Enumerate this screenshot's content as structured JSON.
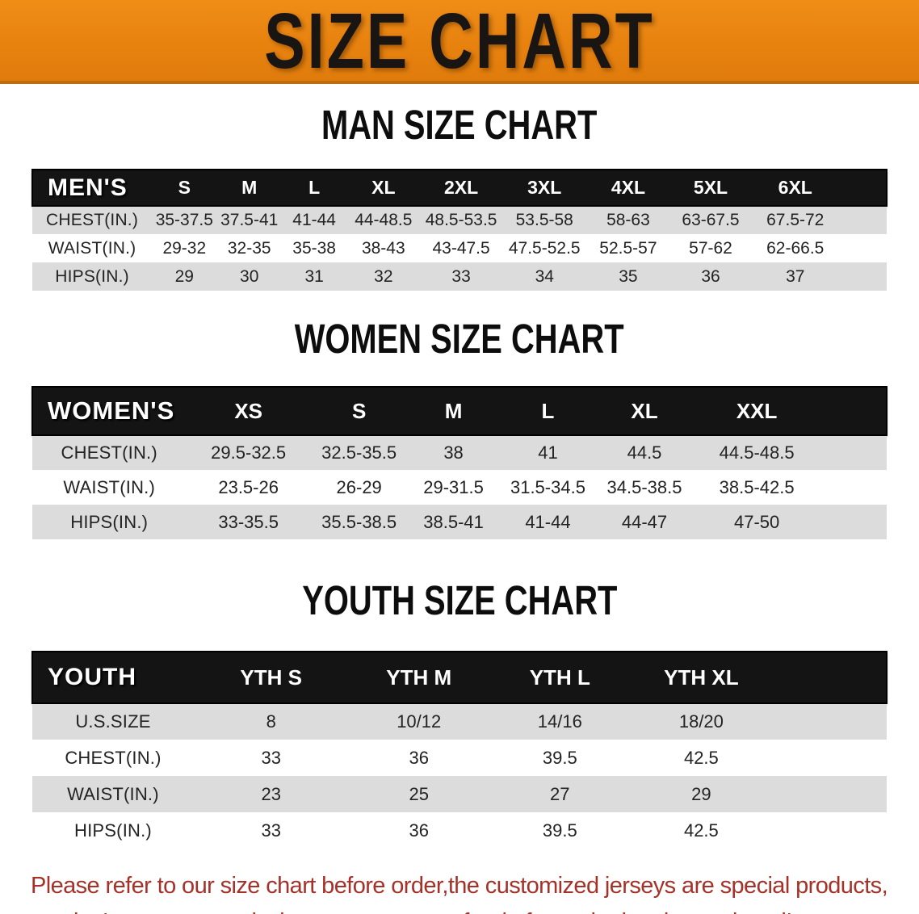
{
  "banner": {
    "title": "SIZE CHART"
  },
  "colors": {
    "banner_orange": "#E8820F",
    "header_black": "#141414",
    "row_gray": "#DCDCDC",
    "row_white": "#FFFFFF",
    "disclaimer_red": "#A63128",
    "heading_text": "#0D0D0D",
    "banner_text": "#181512"
  },
  "sections": {
    "men": {
      "heading": "MAN SIZE CHART",
      "table": {
        "corner_label": "MEN'S",
        "columns": [
          "S",
          "M",
          "L",
          "XL",
          "2XL",
          "3XL",
          "4XL",
          "5XL",
          "6XL"
        ],
        "rows": [
          {
            "label": "CHEST(IN.)",
            "values": [
              "35-37.5",
              "37.5-41",
              "41-44",
              "44-48.5",
              "48.5-53.5",
              "53.5-58",
              "58-63",
              "63-67.5",
              "67.5-72"
            ]
          },
          {
            "label": "WAIST(IN.)",
            "values": [
              "29-32",
              "32-35",
              "35-38",
              "38-43",
              "43-47.5",
              "47.5-52.5",
              "52.5-57",
              "57-62",
              "62-66.5"
            ]
          },
          {
            "label": "HIPS(IN.)",
            "values": [
              "29",
              "30",
              "31",
              "32",
              "33",
              "34",
              "35",
              "36",
              "37"
            ]
          }
        ]
      }
    },
    "women": {
      "heading": "WOMEN SIZE CHART",
      "table": {
        "corner_label": "WOMEN'S",
        "columns": [
          "XS",
          "S",
          "M",
          "L",
          "XL",
          "XXL"
        ],
        "rows": [
          {
            "label": "CHEST(IN.)",
            "values": [
              "29.5-32.5",
              "32.5-35.5",
              "38",
              "41",
              "44.5",
              "44.5-48.5"
            ]
          },
          {
            "label": "WAIST(IN.)",
            "values": [
              "23.5-26",
              "26-29",
              "29-31.5",
              "31.5-34.5",
              "34.5-38.5",
              "38.5-42.5"
            ]
          },
          {
            "label": "HIPS(IN.)",
            "values": [
              "33-35.5",
              "35.5-38.5",
              "38.5-41",
              "41-44",
              "44-47",
              "47-50"
            ]
          }
        ]
      }
    },
    "youth": {
      "heading": "YOUTH SIZE CHART",
      "table": {
        "corner_label": "YOUTH",
        "columns": [
          "YTH S",
          "YTH M",
          "YTH L",
          "YTH XL"
        ],
        "rows": [
          {
            "label": "U.S.SIZE",
            "values": [
              "8",
              "10/12",
              "14/16",
              "18/20"
            ]
          },
          {
            "label": "CHEST(IN.)",
            "values": [
              "33",
              "36",
              "39.5",
              "42.5"
            ]
          },
          {
            "label": "WAIST(IN.)",
            "values": [
              "23",
              "25",
              "27",
              "29"
            ]
          },
          {
            "label": "HIPS(IN.)",
            "values": [
              "33",
              "36",
              "39.5",
              "42.5"
            ]
          }
        ]
      }
    }
  },
  "disclaimer": {
    "line1": "Please refer to our size chart before order,the customized jerseys are special products,",
    "line2": "we don't accept cancel, change, teturn or refund after order has been placed!"
  }
}
